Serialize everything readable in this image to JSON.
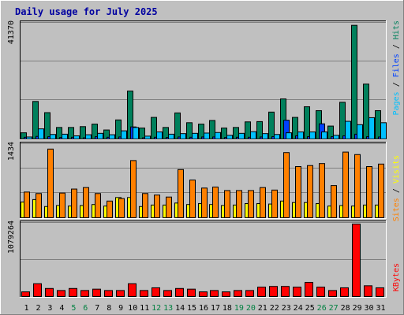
{
  "title": "Daily usage for July 2025",
  "colors": {
    "background": "#c0c0c0",
    "plot_bg": "#c0c0c0",
    "title": "#0000a0",
    "hits": "#00805c",
    "files": "#0040ff",
    "pages": "#00c0ff",
    "visits": "#ffff00",
    "sites": "#ff8000",
    "kbytes": "#ff0000",
    "weekend_label": "#008040",
    "weekday_label": "#000000"
  },
  "chart_data": [
    {
      "type": "bar",
      "panel": "hits-files-pages",
      "ymax_label": "41370",
      "ymax": 41370,
      "axis_label": {
        "pages": "Pages",
        "files": "Files",
        "hits": "Hits",
        "sep": " / "
      },
      "categories": [
        "1",
        "2",
        "3",
        "4",
        "5",
        "6",
        "7",
        "8",
        "9",
        "10",
        "11",
        "12",
        "13",
        "14",
        "15",
        "16",
        "17",
        "18",
        "19",
        "20",
        "21",
        "22",
        "23",
        "24",
        "25",
        "26",
        "27",
        "28",
        "29",
        "30",
        "31"
      ],
      "series": [
        {
          "name": "Hits",
          "values": [
            2500,
            13700,
            9700,
            4400,
            4400,
            4700,
            5600,
            3500,
            7100,
            17400,
            4200,
            8000,
            4400,
            9600,
            6100,
            5600,
            6900,
            4200,
            4400,
            6400,
            6500,
            9900,
            14600,
            8000,
            11800,
            10400,
            4900,
            13400,
            40900,
            19900,
            10400
          ]
        },
        {
          "name": "Files",
          "values": [
            900,
            1200,
            1100,
            800,
            900,
            700,
            1100,
            900,
            1000,
            4600,
            700,
            900,
            800,
            1000,
            900,
            1000,
            1000,
            800,
            900,
            900,
            1000,
            1100,
            7000,
            1400,
            1100,
            5700,
            1100,
            1400,
            2000,
            1100,
            1000
          ]
        },
        {
          "name": "Pages",
          "values": [
            1000,
            3900,
            1900,
            2000,
            1400,
            1800,
            2300,
            1800,
            3200,
            4400,
            1300,
            2800,
            2000,
            2200,
            2300,
            2400,
            2600,
            1600,
            2300,
            2900,
            2200,
            1900,
            2500,
            2800,
            2800,
            2800,
            1600,
            6600,
            5400,
            7900,
            6100
          ]
        }
      ]
    },
    {
      "type": "bar",
      "panel": "visits-sites",
      "ymax_label": "1434",
      "ymax": 1434,
      "axis_label": {
        "sites": "Sites",
        "visits": "Visits",
        "sep": " / "
      },
      "categories": [
        "1",
        "2",
        "3",
        "4",
        "5",
        "6",
        "7",
        "8",
        "9",
        "10",
        "11",
        "12",
        "13",
        "14",
        "15",
        "16",
        "17",
        "18",
        "19",
        "20",
        "21",
        "22",
        "23",
        "24",
        "25",
        "26",
        "27",
        "28",
        "29",
        "30",
        "31"
      ],
      "series": [
        {
          "name": "Visits",
          "values": [
            330,
            380,
            240,
            260,
            250,
            260,
            280,
            250,
            420,
            420,
            240,
            270,
            270,
            310,
            280,
            300,
            280,
            260,
            270,
            300,
            300,
            290,
            350,
            320,
            320,
            300,
            250,
            260,
            250,
            270,
            270
          ]
        },
        {
          "name": "Sites",
          "values": [
            530,
            500,
            1390,
            510,
            590,
            620,
            500,
            350,
            400,
            1160,
            500,
            470,
            430,
            980,
            770,
            610,
            630,
            560,
            560,
            560,
            620,
            570,
            1320,
            1040,
            1060,
            1100,
            660,
            1330,
            1280,
            1040,
            1090
          ]
        }
      ]
    },
    {
      "type": "bar",
      "panel": "kbytes",
      "ymax_label": "1079264",
      "ymax": 1079264,
      "axis_label": {
        "kbytes": "KBytes"
      },
      "categories": [
        "1",
        "2",
        "3",
        "4",
        "5",
        "6",
        "7",
        "8",
        "9",
        "10",
        "11",
        "12",
        "13",
        "14",
        "15",
        "16",
        "17",
        "18",
        "19",
        "20",
        "21",
        "22",
        "23",
        "24",
        "25",
        "26",
        "27",
        "28",
        "29",
        "30",
        "31"
      ],
      "series": [
        {
          "name": "KBytes",
          "values": [
            80000,
            200000,
            130000,
            100000,
            130000,
            100000,
            120000,
            100000,
            100000,
            200000,
            100000,
            140000,
            100000,
            130000,
            120000,
            80000,
            100000,
            80000,
            100000,
            100000,
            150000,
            160000,
            160000,
            150000,
            220000,
            150000,
            100000,
            140000,
            1079264,
            170000,
            140000
          ]
        }
      ]
    }
  ],
  "weekend_days": [
    5,
    6,
    12,
    13,
    19,
    20,
    26,
    27
  ]
}
